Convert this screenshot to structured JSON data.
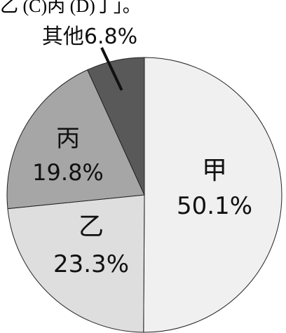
{
  "header_fragment": "乙  (C)丙  (D)丁」。",
  "chart_data": {
    "type": "pie",
    "categories": [
      "甲",
      "乙",
      "丙",
      "其他"
    ],
    "values": [
      50.1,
      23.3,
      19.8,
      6.8
    ],
    "value_labels": [
      "50.1%",
      "23.3%",
      "19.8%",
      "6.8%"
    ],
    "colors": [
      "#f0f0f0",
      "#dedede",
      "#a6a6a6",
      "#595959"
    ],
    "start": "12 o'clock",
    "direction": "clockwise",
    "title": "",
    "legend": "none"
  }
}
